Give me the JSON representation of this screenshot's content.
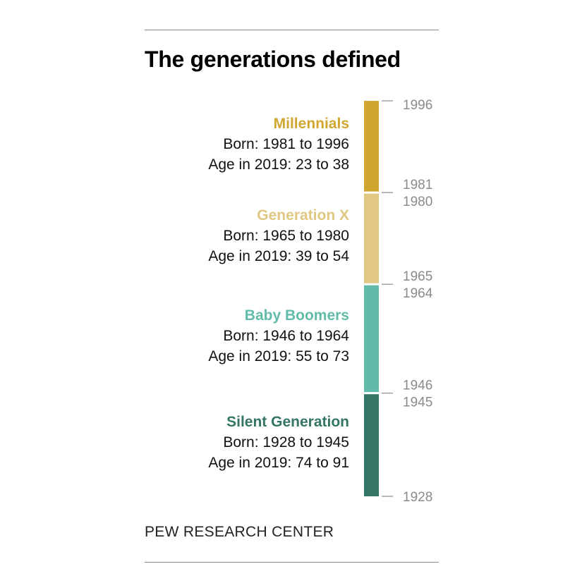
{
  "title": "The generations defined",
  "footer": "PEW RESEARCH CENTER",
  "chart_data": {
    "type": "bar",
    "orientation": "vertical-stacked-timeline",
    "axis": {
      "min_year": 1928,
      "max_year": 1996,
      "tick_color": "#8a8a8a"
    },
    "generations": [
      {
        "name": "Millennials",
        "start": 1981,
        "end": 1996,
        "born": "Born: 1981 to 1996",
        "age": "Age in 2019: 23 to 38",
        "color": "#d1a630",
        "start_label": "1981",
        "end_label": "1996"
      },
      {
        "name": "Generation X",
        "start": 1965,
        "end": 1980,
        "born": "Born: 1965 to 1980",
        "age": "Age in 2019: 39 to 54",
        "color": "#e0c882",
        "start_label": "1965",
        "end_label": "1980"
      },
      {
        "name": "Baby Boomers",
        "start": 1946,
        "end": 1964,
        "born": "Born: 1946 to 1964",
        "age": "Age in 2019: 55 to 73",
        "color": "#62bbaa",
        "start_label": "1946",
        "end_label": "1964"
      },
      {
        "name": "Silent Generation",
        "start": 1928,
        "end": 1945,
        "born": "Born: 1928 to 1945",
        "age": "Age in 2019: 74 to 91",
        "color": "#357565",
        "start_label": "1928",
        "end_label": "1945"
      }
    ]
  }
}
